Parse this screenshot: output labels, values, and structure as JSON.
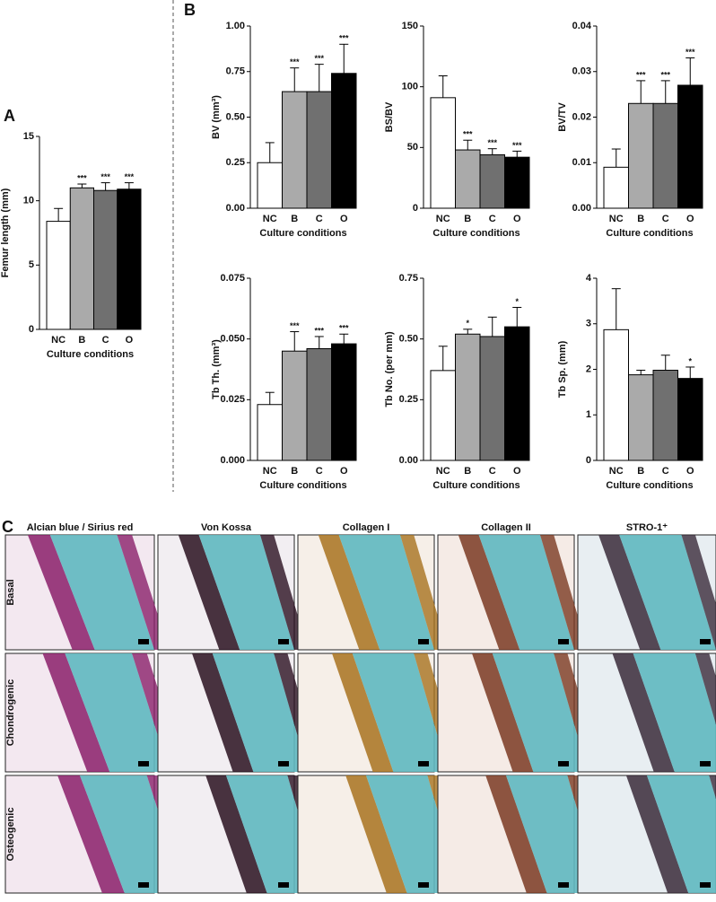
{
  "panels": {
    "a": "A",
    "b": "B",
    "c": "C"
  },
  "chart_data": [
    {
      "type": "bar",
      "ylabel": "Femur length (mm)",
      "xlabel": "Culture conditions",
      "categories": [
        "NC",
        "B",
        "C",
        "O"
      ],
      "colors": [
        "#ffffff",
        "#aaaaaa",
        "#707070",
        "#000000"
      ],
      "values": [
        8.4,
        11.0,
        10.8,
        10.9
      ],
      "errors": [
        1.0,
        0.3,
        0.6,
        0.5
      ],
      "significance": [
        null,
        "***",
        "***",
        "***"
      ],
      "ylim": [
        0,
        15
      ],
      "yticks": [
        0,
        5,
        10,
        15
      ]
    },
    {
      "type": "bar",
      "ylabel": "BV (mm³)",
      "xlabel": "Culture conditions",
      "categories": [
        "NC",
        "B",
        "C",
        "O"
      ],
      "colors": [
        "#ffffff",
        "#aaaaaa",
        "#707070",
        "#000000"
      ],
      "values": [
        0.25,
        0.64,
        0.64,
        0.74
      ],
      "errors": [
        0.11,
        0.13,
        0.15,
        0.16
      ],
      "significance": [
        null,
        "***",
        "***",
        "***"
      ],
      "ylim": [
        0,
        1
      ],
      "yticks": [
        {
          "value": 0,
          "label": "0.00"
        },
        {
          "value": 0.25,
          "label": "0.25"
        },
        {
          "value": 0.5,
          "label": "0.50"
        },
        {
          "value": 0.75,
          "label": "0.75"
        },
        {
          "value": 1,
          "label": "1.00"
        }
      ]
    },
    {
      "type": "bar",
      "ylabel": "BS/BV",
      "xlabel": "Culture conditions",
      "categories": [
        "NC",
        "B",
        "C",
        "O"
      ],
      "colors": [
        "#ffffff",
        "#aaaaaa",
        "#707070",
        "#000000"
      ],
      "values": [
        91,
        48,
        44,
        42
      ],
      "errors": [
        18,
        8,
        5,
        5
      ],
      "significance": [
        null,
        "***",
        "***",
        "***"
      ],
      "ylim": [
        0,
        150
      ],
      "yticks": [
        0,
        50,
        100,
        150
      ]
    },
    {
      "type": "bar",
      "ylabel": "BV/TV",
      "xlabel": "Culture conditions",
      "categories": [
        "NC",
        "B",
        "C",
        "O"
      ],
      "colors": [
        "#ffffff",
        "#aaaaaa",
        "#707070",
        "#000000"
      ],
      "values": [
        0.009,
        0.023,
        0.023,
        0.027
      ],
      "errors": [
        0.004,
        0.005,
        0.005,
        0.006
      ],
      "significance": [
        null,
        "***",
        "***",
        "***"
      ],
      "ylim": [
        0,
        0.04
      ],
      "yticks": [
        {
          "value": 0,
          "label": "0.00"
        },
        {
          "value": 0.01,
          "label": "0.01"
        },
        {
          "value": 0.02,
          "label": "0.02"
        },
        {
          "value": 0.03,
          "label": "0.03"
        },
        {
          "value": 0.04,
          "label": "0.04"
        }
      ]
    },
    {
      "type": "bar",
      "ylabel": "Tb Th. (mm³)",
      "xlabel": "Culture conditions",
      "categories": [
        "NC",
        "B",
        "C",
        "O"
      ],
      "colors": [
        "#ffffff",
        "#aaaaaa",
        "#707070",
        "#000000"
      ],
      "values": [
        0.023,
        0.045,
        0.046,
        0.048
      ],
      "errors": [
        0.005,
        0.008,
        0.005,
        0.004
      ],
      "significance": [
        null,
        "***",
        "***",
        "***"
      ],
      "ylim": [
        0,
        0.075
      ],
      "yticks": [
        {
          "value": 0,
          "label": "0.000"
        },
        {
          "value": 0.025,
          "label": "0.025"
        },
        {
          "value": 0.05,
          "label": "0.050"
        },
        {
          "value": 0.075,
          "label": "0.075"
        }
      ]
    },
    {
      "type": "bar",
      "ylabel": "Tb No. (per mm)",
      "xlabel": "Culture conditions",
      "categories": [
        "NC",
        "B",
        "C",
        "O"
      ],
      "colors": [
        "#ffffff",
        "#aaaaaa",
        "#707070",
        "#000000"
      ],
      "values": [
        0.37,
        0.52,
        0.51,
        0.55
      ],
      "errors": [
        0.1,
        0.02,
        0.08,
        0.08
      ],
      "significance": [
        null,
        "*",
        null,
        "*"
      ],
      "ylim": [
        0,
        0.75
      ],
      "yticks": [
        {
          "value": 0,
          "label": "0.00"
        },
        {
          "value": 0.25,
          "label": "0.25"
        },
        {
          "value": 0.5,
          "label": "0.50"
        },
        {
          "value": 0.75,
          "label": "0.75"
        }
      ]
    },
    {
      "type": "bar",
      "ylabel": "Tb Sp. (mm)",
      "xlabel": "Culture conditions",
      "categories": [
        "NC",
        "B",
        "C",
        "O"
      ],
      "colors": [
        "#ffffff",
        "#aaaaaa",
        "#707070",
        "#000000"
      ],
      "values": [
        2.87,
        1.88,
        1.98,
        1.8
      ],
      "errors": [
        0.9,
        0.1,
        0.33,
        0.25
      ],
      "significance": [
        null,
        null,
        null,
        "*"
      ],
      "ylim": [
        0,
        4
      ],
      "yticks": [
        0,
        1,
        2,
        3,
        4
      ]
    }
  ],
  "histology": {
    "columns": [
      "Alcian blue / Sirius red",
      "Von Kossa",
      "Collagen I",
      "Collagen II",
      "STRO-1⁺"
    ],
    "rows": [
      "Basal",
      "Chondrogenic",
      "Osteogenic"
    ]
  }
}
